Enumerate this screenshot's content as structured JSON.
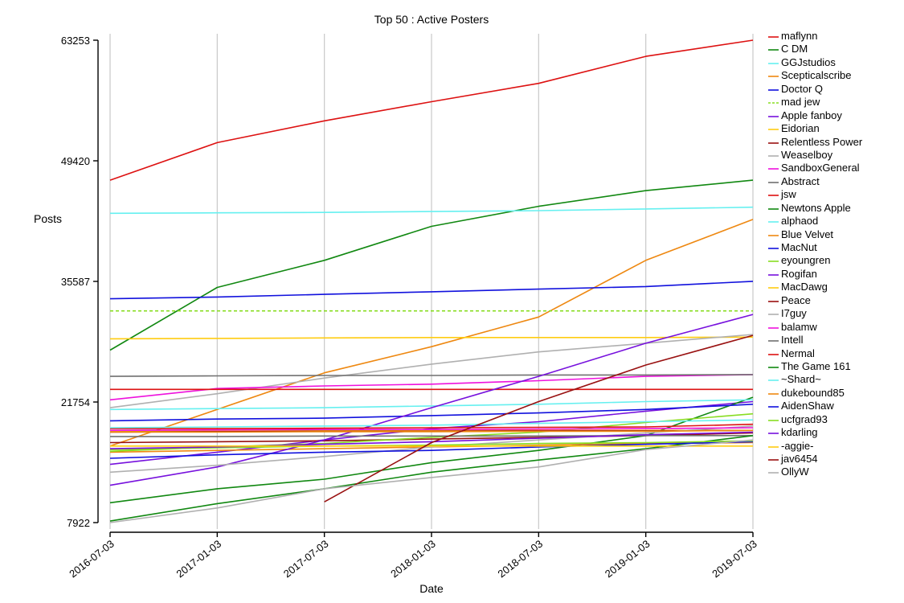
{
  "chart_data": {
    "type": "line",
    "title": "Top 50 : Active Posters",
    "xlabel": "Date",
    "ylabel": "Posts",
    "x": [
      "2016-07-03",
      "2017-01-03",
      "2017-07-03",
      "2018-01-03",
      "2018-07-03",
      "2019-01-03",
      "2019-07-03"
    ],
    "y_ticks": [
      7922,
      21754,
      35587,
      49420,
      63253
    ],
    "ylim": [
      7922,
      63253
    ],
    "grid": "vertical",
    "legend_position": "right",
    "series": [
      {
        "name": "maflynn",
        "color": "#dd1111",
        "values": [
          47200,
          51500,
          54000,
          56200,
          58300,
          61400,
          63253
        ]
      },
      {
        "name": "C DM",
        "color": "#118811",
        "values": [
          27700,
          34900,
          38000,
          41900,
          44200,
          46000,
          47200
        ]
      },
      {
        "name": "GGJstudios",
        "color": "#66f0f0",
        "values": [
          43400,
          43450,
          43500,
          43600,
          43700,
          43900,
          44100
        ]
      },
      {
        "name": "Scepticalscribe",
        "color": "#ee8811",
        "values": [
          16700,
          20900,
          25100,
          28100,
          31500,
          38000,
          42700
        ]
      },
      {
        "name": "Doctor Q",
        "color": "#1111dd",
        "values": [
          33600,
          33800,
          34100,
          34400,
          34700,
          35000,
          35600
        ]
      },
      {
        "name": "mad jew",
        "color": "#88dd22",
        "dashed": true,
        "values": [
          32200,
          32200,
          32200,
          32200,
          32200,
          32200,
          32200
        ]
      },
      {
        "name": "Apple fanboy",
        "color": "#7711dd",
        "values": [
          14600,
          16000,
          17400,
          18700,
          19500,
          20700,
          21800
        ]
      },
      {
        "name": "Eidorian",
        "color": "#ffcc11",
        "values": [
          29000,
          29050,
          29100,
          29150,
          29150,
          29150,
          29200
        ]
      },
      {
        "name": "Relentless Power",
        "color": "#991111",
        "values": [
          17100,
          17200,
          17300,
          17500,
          17700,
          17900,
          18200
        ]
      },
      {
        "name": "Weaselboy",
        "color": "#b0b0b0",
        "values": [
          21100,
          22700,
          24500,
          26100,
          27500,
          28500,
          29500
        ]
      },
      {
        "name": "SandboxGeneral",
        "color": "#ee11dd",
        "values": [
          22000,
          23300,
          23600,
          23800,
          24200,
          24700,
          24900
        ]
      },
      {
        "name": "Abstract",
        "color": "#707070",
        "values": [
          24700,
          24750,
          24800,
          24800,
          24850,
          24850,
          24900
        ]
      },
      {
        "name": "jsw",
        "color": "#dd1111",
        "values": [
          23200,
          23200,
          23200,
          23200,
          23200,
          23200,
          23200
        ]
      },
      {
        "name": "Newtons Apple",
        "color": "#118811",
        "values": [
          10200,
          11800,
          12900,
          14800,
          16200,
          17900,
          22300
        ]
      },
      {
        "name": "alphaod",
        "color": "#66f0f0",
        "values": [
          20900,
          21000,
          21100,
          21300,
          21500,
          21800,
          22000
        ]
      },
      {
        "name": "Blue Velvet",
        "color": "#ee8811",
        "values": [
          16000,
          16200,
          16400,
          16600,
          16800,
          17000,
          17100
        ]
      },
      {
        "name": "MacNut",
        "color": "#1111dd",
        "values": [
          19600,
          19800,
          19900,
          20200,
          20500,
          20900,
          21500
        ]
      },
      {
        "name": "eyoungren",
        "color": "#88dd22",
        "values": [
          16100,
          16600,
          17000,
          17700,
          18300,
          19400,
          20400
        ]
      },
      {
        "name": "Rogifan",
        "color": "#7711dd",
        "values": [
          12200,
          14300,
          17400,
          21100,
          24700,
          28500,
          31800
        ]
      },
      {
        "name": "MacDawg",
        "color": "#ffcc11",
        "values": [
          18400,
          18450,
          18500,
          18500,
          18500,
          18500,
          18500
        ]
      },
      {
        "name": "Peace",
        "color": "#991111",
        "values": [
          18300,
          18350,
          18400,
          18400,
          18450,
          18450,
          18500
        ]
      },
      {
        "name": "I7guy",
        "color": "#b0b0b0",
        "values": [
          13700,
          14500,
          15500,
          16600,
          17400,
          18200,
          19000
        ]
      },
      {
        "name": "balamw",
        "color": "#ee11dd",
        "values": [
          18500,
          18550,
          18600,
          18600,
          18650,
          18700,
          18800
        ]
      },
      {
        "name": "Intell",
        "color": "#707070",
        "values": [
          17800,
          17800,
          17850,
          17850,
          17850,
          17900,
          17900
        ]
      },
      {
        "name": "Nermal",
        "color": "#dd1111",
        "values": [
          18700,
          18700,
          18750,
          18800,
          18850,
          18900,
          19200
        ]
      },
      {
        "name": "The Game 161",
        "color": "#118811",
        "values": [
          8100,
          10100,
          11800,
          13700,
          15100,
          16400,
          17900
        ]
      },
      {
        "name": "~Shard~",
        "color": "#66f0f0",
        "values": [
          18800,
          18900,
          19000,
          19100,
          19300,
          19500,
          19700
        ]
      },
      {
        "name": "dukebound85",
        "color": "#ee8811",
        "values": [
          18300,
          18300,
          18350,
          18350,
          18400,
          18400,
          18500
        ]
      },
      {
        "name": "AidenShaw",
        "color": "#1111dd",
        "values": [
          15300,
          15700,
          16000,
          16200,
          16600,
          16900,
          17200
        ]
      },
      {
        "name": "ucfgrad93",
        "color": "#88dd22",
        "values": [
          16300,
          16500,
          16700,
          16800,
          17000,
          17100,
          17300
        ]
      },
      {
        "name": "kdarling",
        "color": "#7711dd",
        "values": [
          16400,
          16600,
          16900,
          17200,
          17600,
          18000,
          18300
        ]
      },
      {
        "name": "-aggie-",
        "color": "#ffcc11",
        "values": [
          16700,
          16700,
          16700,
          16700,
          16700,
          16700,
          16700
        ]
      },
      {
        "name": "jav6454",
        "color": "#991111",
        "values": [
          null,
          null,
          10300,
          17100,
          21800,
          26000,
          29400
        ]
      },
      {
        "name": "OllyW",
        "color": "#b0b0b0",
        "values": [
          7922,
          9600,
          11800,
          13100,
          14300,
          16300,
          17400
        ]
      }
    ]
  }
}
